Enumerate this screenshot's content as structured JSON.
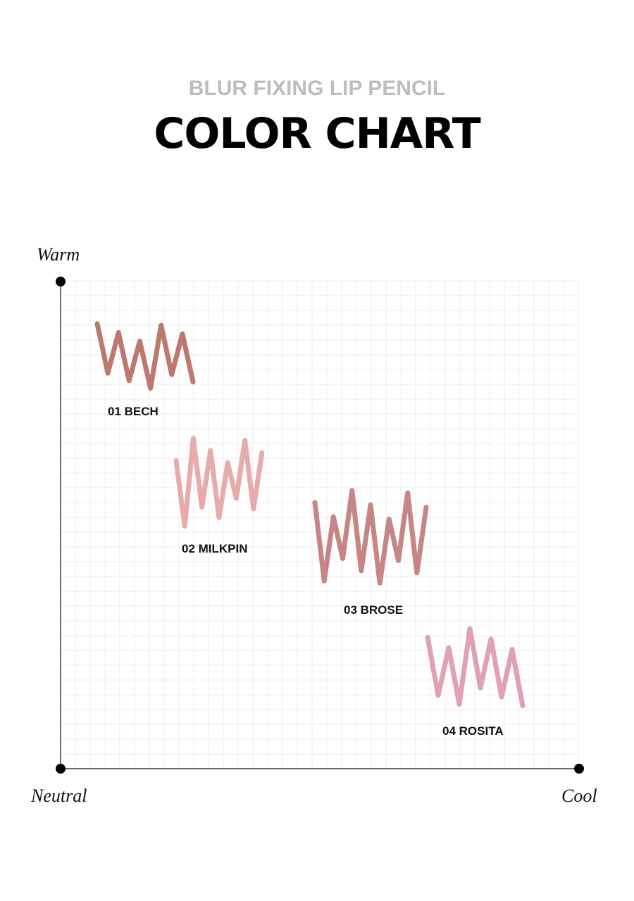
{
  "header": {
    "subtitle": "BLUR FIXING LIP PENCIL",
    "title": "COLOR CHART"
  },
  "axes": {
    "top": "Warm",
    "origin": "Neutral",
    "right": "Cool"
  },
  "swatches": [
    {
      "name": "01 BECH",
      "color": "#b56a63"
    },
    {
      "name": "02 MILKPIN",
      "color": "#e2a3a2"
    },
    {
      "name": "03 BROSE",
      "color": "#c07978"
    },
    {
      "name": "04 ROSITA",
      "color": "#dd98ab"
    }
  ]
}
